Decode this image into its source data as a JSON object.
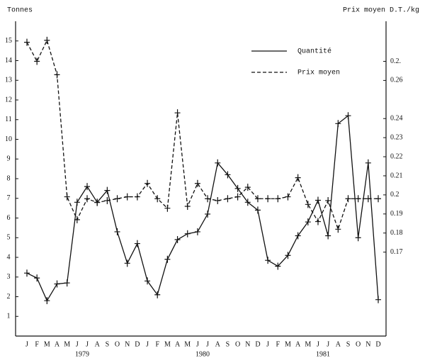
{
  "chart_data": {
    "type": "line",
    "y_label": "Tonnes",
    "y2_label": "Prix moyen D.T./kg",
    "categories": [
      "J",
      "F",
      "M",
      "A",
      "M",
      "J",
      "J",
      "A",
      "S",
      "O",
      "N",
      "D",
      "J",
      "F",
      "M",
      "A",
      "M",
      "J",
      "J",
      "A",
      "S",
      "O",
      "N",
      "D",
      "J",
      "F",
      "M",
      "A",
      "M",
      "J",
      "J",
      "A",
      "S",
      "O",
      "N",
      "D"
    ],
    "year_labels": [
      "1979",
      "1980",
      "1981"
    ],
    "series": [
      {
        "name": "Quantité",
        "color": "#111111",
        "dash": false,
        "values": [
          3.2,
          2.95,
          1.8,
          2.65,
          2.7,
          6.8,
          7.6,
          6.8,
          7.4,
          5.3,
          3.7,
          4.7,
          2.8,
          2.1,
          3.9,
          4.9,
          5.2,
          5.3,
          6.2,
          8.8,
          8.2,
          7.5,
          6.8,
          6.4,
          3.85,
          3.55,
          4.1,
          5.1,
          5.8,
          6.9,
          5.1,
          10.8,
          11.2,
          5.0,
          8.8,
          1.85
        ]
      },
      {
        "name": "Prix moyen",
        "color": "#111111",
        "dash": true,
        "axis": "y2",
        "values": [
          0.28,
          0.27,
          0.281,
          0.263,
          0.199,
          0.187,
          0.198,
          0.196,
          0.197,
          0.198,
          0.199,
          0.199,
          0.206,
          0.198,
          0.193,
          0.243,
          0.194,
          0.206,
          0.198,
          0.197,
          0.198,
          0.199,
          0.204,
          0.198,
          0.198,
          0.198,
          0.199,
          0.209,
          0.195,
          0.186,
          0.197,
          0.182,
          0.198,
          0.198,
          0.198,
          0.198
        ]
      }
    ],
    "ylim": [
      0,
      16
    ],
    "yticks": [
      1,
      2,
      3,
      4,
      5,
      6,
      7,
      8,
      9,
      10,
      11,
      12,
      13,
      14,
      15
    ],
    "y2lim": [
      0.126,
      0.291
    ],
    "y2ticks": [
      {
        "value": 0.17,
        "label": "0.17"
      },
      {
        "value": 0.18,
        "label": "0.18"
      },
      {
        "value": 0.19,
        "label": "0.19"
      },
      {
        "value": 0.2,
        "label": "0.2"
      },
      {
        "value": 0.21,
        "label": "0.21"
      },
      {
        "value": 0.22,
        "label": "0.22"
      },
      {
        "value": 0.23,
        "label": "0.23"
      },
      {
        "value": 0.24,
        "label": "0.24"
      },
      {
        "value": 0.26,
        "label": "0.26"
      },
      {
        "value": 0.27,
        "label": "0.2."
      }
    ],
    "legend": "top-right"
  }
}
